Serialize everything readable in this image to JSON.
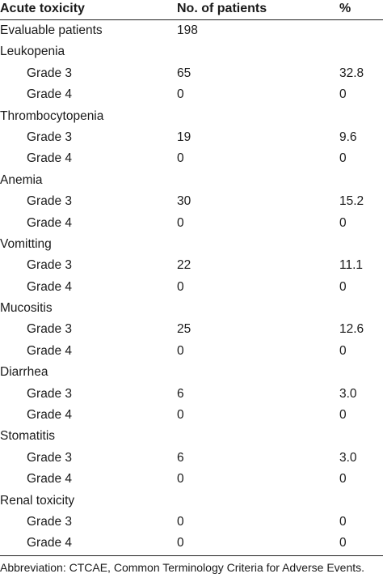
{
  "table": {
    "headers": {
      "label": "Acute toxicity",
      "n": "No. of patients",
      "pct": "%"
    },
    "rows": [
      {
        "label": "Evaluable patients",
        "n": "198",
        "pct": "",
        "indent": false
      },
      {
        "label": "Leukopenia",
        "n": "",
        "pct": "",
        "indent": false
      },
      {
        "label": "Grade 3",
        "n": "65",
        "pct": "32.8",
        "indent": true
      },
      {
        "label": "Grade 4",
        "n": "0",
        "pct": "0",
        "indent": true
      },
      {
        "label": "Thrombocytopenia",
        "n": "",
        "pct": "",
        "indent": false
      },
      {
        "label": "Grade 3",
        "n": "19",
        "pct": "9.6",
        "indent": true
      },
      {
        "label": "Grade 4",
        "n": "0",
        "pct": "0",
        "indent": true
      },
      {
        "label": "Anemia",
        "n": "",
        "pct": "",
        "indent": false
      },
      {
        "label": "Grade 3",
        "n": "30",
        "pct": "15.2",
        "indent": true
      },
      {
        "label": "Grade 4",
        "n": "0",
        "pct": "0",
        "indent": true
      },
      {
        "label": "Vomitting",
        "n": "",
        "pct": "",
        "indent": false
      },
      {
        "label": "Grade 3",
        "n": "22",
        "pct": "11.1",
        "indent": true
      },
      {
        "label": "Grade 4",
        "n": "0",
        "pct": "0",
        "indent": true
      },
      {
        "label": "Mucositis",
        "n": "",
        "pct": "",
        "indent": false
      },
      {
        "label": "Grade 3",
        "n": "25",
        "pct": "12.6",
        "indent": true
      },
      {
        "label": "Grade 4",
        "n": "0",
        "pct": "0",
        "indent": true
      },
      {
        "label": "Diarrhea",
        "n": "",
        "pct": "",
        "indent": false
      },
      {
        "label": "Grade 3",
        "n": "6",
        "pct": "3.0",
        "indent": true
      },
      {
        "label": "Grade 4",
        "n": "0",
        "pct": "0",
        "indent": true
      },
      {
        "label": "Stomatitis",
        "n": "",
        "pct": "",
        "indent": false
      },
      {
        "label": "Grade 3",
        "n": "6",
        "pct": "3.0",
        "indent": true
      },
      {
        "label": "Grade 4",
        "n": "0",
        "pct": "0",
        "indent": true
      },
      {
        "label": "Renal toxicity",
        "n": "",
        "pct": "",
        "indent": false
      },
      {
        "label": "Grade 3",
        "n": "0",
        "pct": "0",
        "indent": true
      },
      {
        "label": "Grade 4",
        "n": "0",
        "pct": "0",
        "indent": true
      }
    ]
  },
  "footnote": "Abbreviation: CTCAE, Common Terminology Criteria for Adverse Events."
}
